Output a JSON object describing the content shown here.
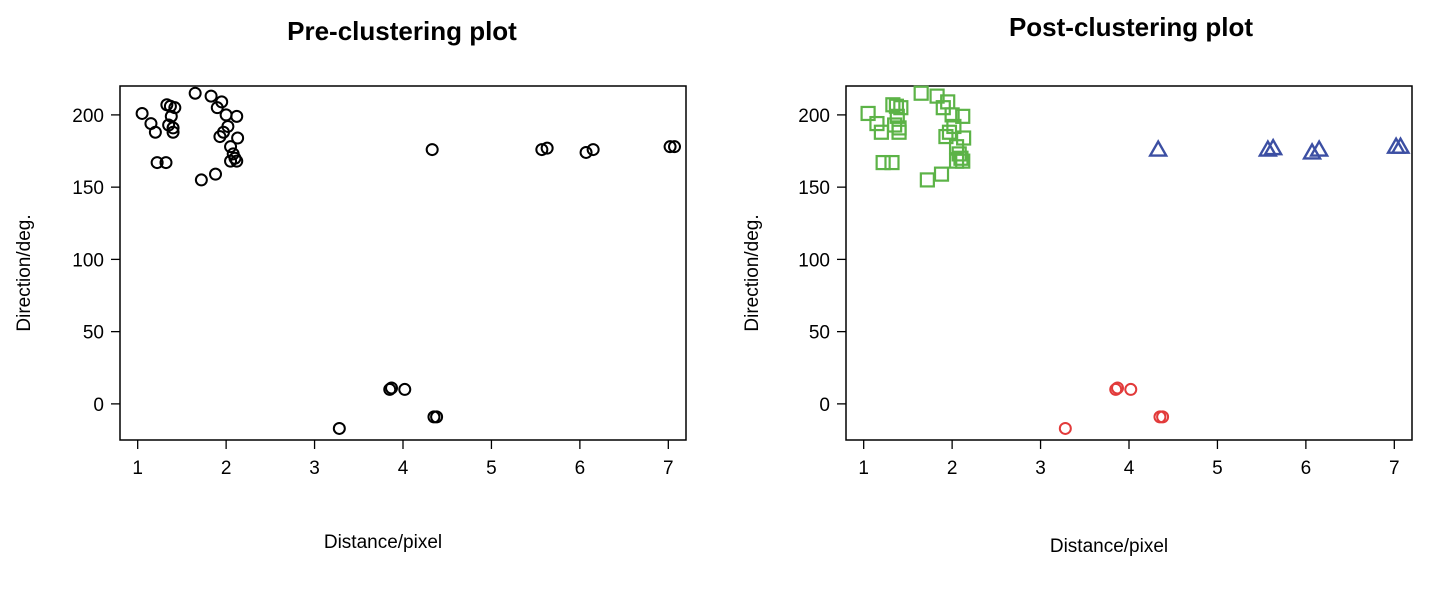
{
  "chart_data": [
    {
      "type": "scatter",
      "title": "Pre-clustering plot",
      "xlabel": "Distance/pixel",
      "ylabel": "Direction/deg.",
      "xlim": [
        0.8,
        7.2
      ],
      "ylim": [
        -25,
        220
      ],
      "xticks": [
        "1",
        "2",
        "3",
        "4",
        "5",
        "6",
        "7"
      ],
      "yticks": [
        "0",
        "50",
        "100",
        "150",
        "200"
      ],
      "grid": false,
      "series": [
        {
          "marker": "circle",
          "color": "#000000",
          "points": [
            [
              1.05,
              201
            ],
            [
              1.15,
              194
            ],
            [
              1.2,
              188
            ],
            [
              1.22,
              167
            ],
            [
              1.32,
              167
            ],
            [
              1.33,
              207
            ],
            [
              1.35,
              193
            ],
            [
              1.37,
              206
            ],
            [
              1.38,
              199
            ],
            [
              1.4,
              191
            ],
            [
              1.4,
              188
            ],
            [
              1.42,
              205
            ],
            [
              1.65,
              215
            ],
            [
              1.72,
              155
            ],
            [
              1.83,
              213
            ],
            [
              1.88,
              159
            ],
            [
              1.9,
              205
            ],
            [
              1.93,
              185
            ],
            [
              1.95,
              209
            ],
            [
              1.97,
              188
            ],
            [
              2.0,
              200
            ],
            [
              2.02,
              192
            ],
            [
              2.05,
              178
            ],
            [
              2.05,
              168
            ],
            [
              2.08,
              173
            ],
            [
              2.1,
              170
            ],
            [
              2.12,
              168
            ],
            [
              2.12,
              199
            ],
            [
              2.13,
              184
            ],
            [
              3.28,
              -17
            ],
            [
              3.85,
              10
            ],
            [
              3.87,
              11
            ],
            [
              4.02,
              10
            ],
            [
              4.35,
              -9
            ],
            [
              4.38,
              -9
            ],
            [
              4.33,
              176
            ],
            [
              5.57,
              176
            ],
            [
              5.63,
              177
            ],
            [
              6.07,
              174
            ],
            [
              6.15,
              176
            ],
            [
              7.02,
              178
            ],
            [
              7.07,
              178
            ]
          ]
        }
      ]
    },
    {
      "type": "scatter",
      "title": "Post-clustering plot",
      "xlabel": "Distance/pixel",
      "ylabel": "Direction/deg.",
      "xlim": [
        0.8,
        7.2
      ],
      "ylim": [
        -25,
        220
      ],
      "xticks": [
        "1",
        "2",
        "3",
        "4",
        "5",
        "6",
        "7"
      ],
      "yticks": [
        "0",
        "50",
        "100",
        "150",
        "200"
      ],
      "grid": false,
      "series": [
        {
          "marker": "square",
          "color": "#5cb347",
          "points": [
            [
              1.05,
              201
            ],
            [
              1.15,
              194
            ],
            [
              1.2,
              188
            ],
            [
              1.22,
              167
            ],
            [
              1.32,
              167
            ],
            [
              1.33,
              207
            ],
            [
              1.35,
              193
            ],
            [
              1.37,
              206
            ],
            [
              1.38,
              199
            ],
            [
              1.4,
              191
            ],
            [
              1.4,
              188
            ],
            [
              1.42,
              205
            ],
            [
              1.65,
              215
            ],
            [
              1.72,
              155
            ],
            [
              1.83,
              213
            ],
            [
              1.88,
              159
            ],
            [
              1.9,
              205
            ],
            [
              1.93,
              185
            ],
            [
              1.95,
              209
            ],
            [
              1.97,
              188
            ],
            [
              2.0,
              200
            ],
            [
              2.02,
              192
            ],
            [
              2.05,
              178
            ],
            [
              2.05,
              168
            ],
            [
              2.08,
              173
            ],
            [
              2.1,
              170
            ],
            [
              2.12,
              168
            ],
            [
              2.12,
              199
            ],
            [
              2.13,
              184
            ]
          ]
        },
        {
          "marker": "circle",
          "color": "#e23a3a",
          "points": [
            [
              3.28,
              -17
            ],
            [
              3.85,
              10
            ],
            [
              3.87,
              11
            ],
            [
              4.02,
              10
            ],
            [
              4.35,
              -9
            ],
            [
              4.38,
              -9
            ]
          ]
        },
        {
          "marker": "triangle",
          "color": "#3c4fa3",
          "points": [
            [
              4.33,
              176
            ],
            [
              5.57,
              176
            ],
            [
              5.63,
              177
            ],
            [
              6.07,
              174
            ],
            [
              6.15,
              176
            ],
            [
              7.02,
              178
            ],
            [
              7.07,
              178
            ]
          ]
        }
      ]
    }
  ]
}
